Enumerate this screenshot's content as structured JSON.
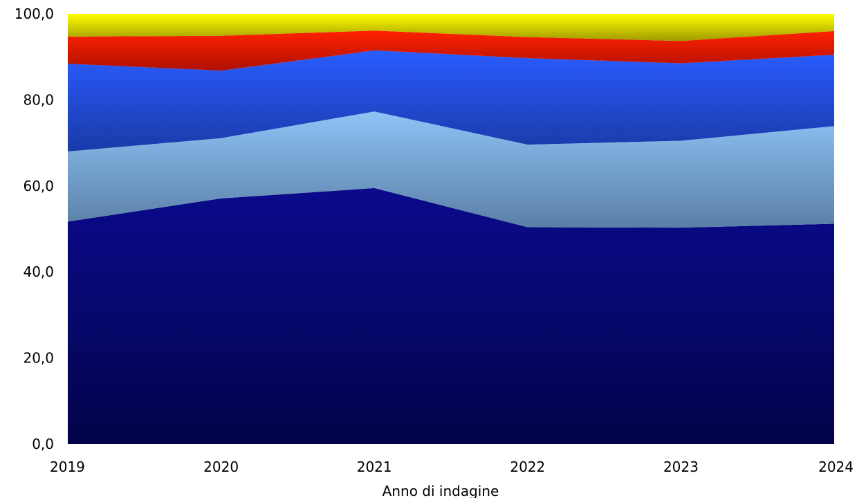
{
  "chart_data": {
    "type": "area",
    "stacked": true,
    "title": "",
    "xlabel": "Anno di indagine",
    "ylabel": "",
    "x": [
      "2019",
      "2020",
      "2021",
      "2022",
      "2023",
      "2024"
    ],
    "ylim": [
      0,
      100
    ],
    "yticks": [
      "0,0",
      "20,0",
      "40,0",
      "60,0",
      "80,0",
      "100,0"
    ],
    "grid": false,
    "legend": "none",
    "series": [
      {
        "values": [
          51.7,
          57.1,
          59.5,
          50.4,
          50.3,
          51.2
        ],
        "color_top": "#0a0a8c",
        "color_bottom": "#03034a"
      },
      {
        "values": [
          16.3,
          14.0,
          17.8,
          19.2,
          20.2,
          22.7
        ],
        "color_top": "#8ec4f6",
        "color_bottom": "#5a7fa6"
      },
      {
        "values": [
          20.4,
          15.7,
          14.2,
          20.1,
          18.0,
          16.6
        ],
        "color_top": "#2a5cff",
        "color_bottom": "#1a3aa8"
      },
      {
        "values": [
          6.3,
          8.1,
          4.6,
          4.9,
          5.2,
          5.5
        ],
        "color_top": "#ff2200",
        "color_bottom": "#b01000"
      },
      {
        "values": [
          5.3,
          5.1,
          3.9,
          5.4,
          6.3,
          4.0
        ],
        "color_top": "#ffff00",
        "color_bottom": "#a09a00"
      }
    ]
  }
}
